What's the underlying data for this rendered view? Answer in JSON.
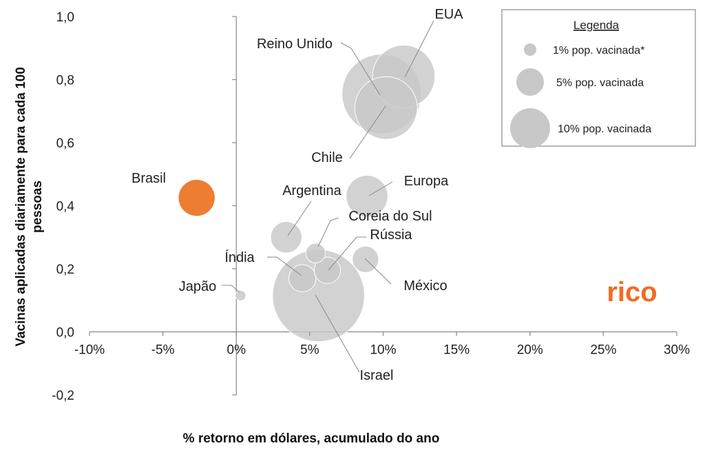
{
  "chart_data": {
    "type": "scatter",
    "xlabel": "% retorno em dólares, acumulado do ano",
    "ylabel_line1": "Vacinas aplicadas diariamente para cada 100",
    "ylabel_line2": "pessoas",
    "xlim": [
      -0.1,
      0.3
    ],
    "ylim": [
      -0.2,
      1.0
    ],
    "x_ticks": [
      "-10%",
      "-5%",
      "0%",
      "5%",
      "10%",
      "15%",
      "20%",
      "25%",
      "30%"
    ],
    "y_ticks": [
      "1,0",
      "0,8",
      "0,6",
      "0,4",
      "0,2",
      "0,0",
      "-0,2"
    ],
    "colors": {
      "bubble": "#C8C8C8",
      "highlight": "#ED7D31",
      "axis": "#888888",
      "leader": "#888888"
    },
    "points": [
      {
        "name": "EUA",
        "x": 0.114,
        "y": 0.81,
        "vaccinated_pct": 18,
        "highlight": false
      },
      {
        "name": "Reino Unido",
        "x": 0.099,
        "y": 0.755,
        "vaccinated_pct": 29,
        "highlight": false
      },
      {
        "name": "Chile",
        "x": 0.102,
        "y": 0.71,
        "vaccinated_pct": 18,
        "highlight": false
      },
      {
        "name": "Europa",
        "x": 0.089,
        "y": 0.43,
        "vaccinated_pct": 8,
        "highlight": false
      },
      {
        "name": "Brasil",
        "x": -0.027,
        "y": 0.425,
        "vaccinated_pct": 6,
        "highlight": true
      },
      {
        "name": "Argentina",
        "x": 0.034,
        "y": 0.3,
        "vaccinated_pct": 4.5,
        "highlight": false
      },
      {
        "name": "Coreia do Sul",
        "x": 0.054,
        "y": 0.25,
        "vaccinated_pct": 1.8,
        "highlight": false
      },
      {
        "name": "Rússia",
        "x": 0.062,
        "y": 0.195,
        "vaccinated_pct": 3.2,
        "highlight": false
      },
      {
        "name": "México",
        "x": 0.088,
        "y": 0.23,
        "vaccinated_pct": 3.2,
        "highlight": false
      },
      {
        "name": "Índia",
        "x": 0.045,
        "y": 0.17,
        "vaccinated_pct": 3.4,
        "highlight": false
      },
      {
        "name": "Israel",
        "x": 0.056,
        "y": 0.115,
        "vaccinated_pct": 39,
        "highlight": false
      },
      {
        "name": "Japão",
        "x": 0.003,
        "y": 0.115,
        "vaccinated_pct": 0.5,
        "highlight": false
      }
    ],
    "legend": {
      "title": "Legenda",
      "placement": "top-right",
      "entries": [
        {
          "label": "1% pop. vacinada*",
          "vaccinated_pct": 1
        },
        {
          "label": "5% pop. vacinada",
          "vaccinated_pct": 5
        },
        {
          "label": "10% pop. vacinada",
          "vaccinated_pct": 10
        }
      ]
    },
    "brand": "rico"
  }
}
